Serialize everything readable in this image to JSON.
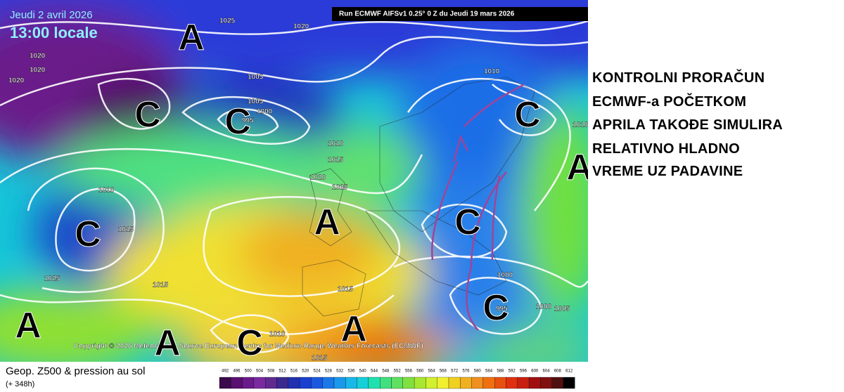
{
  "header": {
    "date": "Jeudi 2 avril 2026",
    "time": "13:00 locale",
    "run": "Run ECMWF AIFSv1 0.25° 0 Z du Jeudi 19 mars 2026"
  },
  "copyright": "Copyright © 2026 Meteociel.fr - Source European Centre for Medium-Range Weather Forecasts (ECMWF)",
  "isobars": [
    "1025",
    "1020",
    "1020",
    "1020",
    "1020",
    "1005",
    "1005",
    "1000",
    "995",
    "1010",
    "1010",
    "1015",
    "1020",
    "1025",
    "1010",
    "1015",
    "1025",
    "1015",
    "1015",
    "1010",
    "1015",
    "1000",
    "995",
    "1000",
    "1005",
    "1010"
  ],
  "centers": [
    "A",
    "C",
    "C",
    "C",
    "A",
    "C",
    "C",
    "A",
    "C",
    "A",
    "A",
    "C",
    "A"
  ],
  "legend": {
    "title": "Geop. Z500 & pression au sol",
    "lead": "(+ 348h)",
    "scale": [
      "492",
      "496",
      "500",
      "504",
      "508",
      "512",
      "516",
      "520",
      "524",
      "528",
      "532",
      "536",
      "540",
      "544",
      "548",
      "552",
      "556",
      "560",
      "564",
      "568",
      "572",
      "576",
      "580",
      "584",
      "588",
      "592",
      "596",
      "600",
      "604",
      "608",
      "612"
    ],
    "colors": [
      "#3a0a4a",
      "#5a1070",
      "#6a1a8a",
      "#7a2aa0",
      "#602a90",
      "#3a2a90",
      "#2030b0",
      "#1a40d0",
      "#1a58e0",
      "#1a78e8",
      "#1a98ec",
      "#18b8e8",
      "#16d0d8",
      "#20e0b0",
      "#40e080",
      "#60e060",
      "#80e040",
      "#a8e830",
      "#d0f030",
      "#f0f030",
      "#f0d020",
      "#f0b020",
      "#f09020",
      "#f07010",
      "#e85010",
      "#e03010",
      "#c82010",
      "#a01010",
      "#801010",
      "#501010",
      "#000000"
    ]
  },
  "annotation": [
    "KONTROLNI PRORAČUN",
    "ECMWF-a POČETKOM",
    "APRILA TAKOĐE SIMULIRA",
    "RELATIVNO HLADNO",
    "VREME UZ PADAVINE"
  ]
}
